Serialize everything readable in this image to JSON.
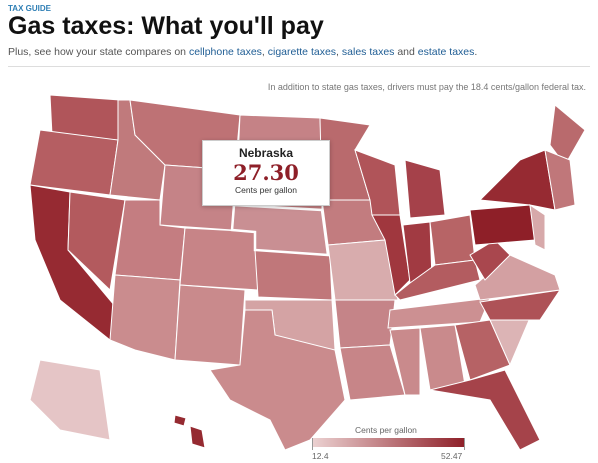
{
  "header": {
    "kicker": "TAX GUIDE",
    "title": "Gas taxes: What you'll pay",
    "subtitle": [
      "Plus, see how your state compares on ",
      "cellphone taxes",
      ", ",
      "cigarette taxes",
      ", ",
      "sales taxes",
      " and ",
      "estate taxes",
      "."
    ]
  },
  "note": "In addition to state gas taxes, drivers must pay the 18.4 cents/gallon federal tax.",
  "tooltip": {
    "state": "Nebraska",
    "value": {
      "value": 27.3,
      "label": "27.30"
    },
    "unit": "Cents per gallon"
  },
  "legend": {
    "title": "Cents per gallon",
    "min": 12.4,
    "max": 52.47,
    "colors": [
      "#ecd2d2",
      "#8e1f28"
    ]
  }
}
